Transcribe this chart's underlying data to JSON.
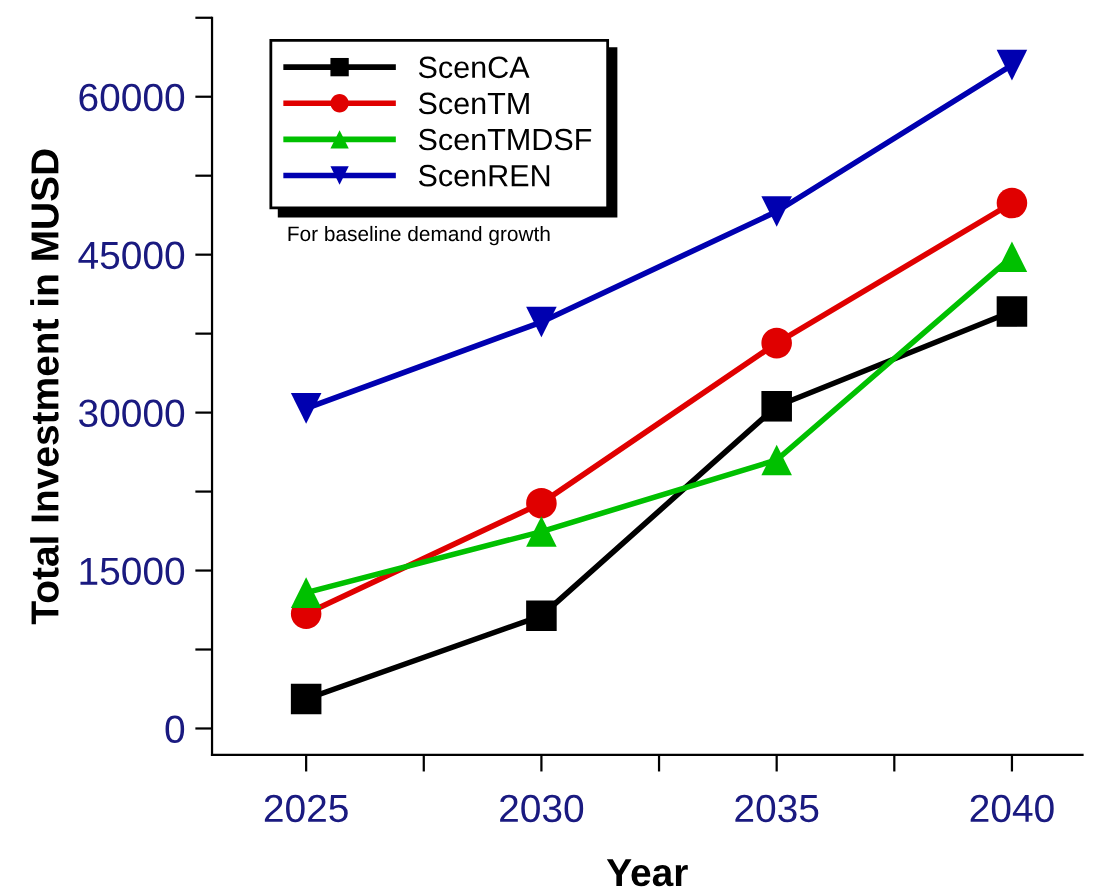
{
  "chart_data": {
    "type": "line",
    "xlabel": "Year",
    "ylabel": "Total Investment in MUSD",
    "x": [
      2025,
      2030,
      2035,
      2040
    ],
    "series": [
      {
        "name": "ScenCA",
        "color": "#000000",
        "marker": "square",
        "values": [
          2800,
          10700,
          30600,
          39600
        ]
      },
      {
        "name": "ScenTM",
        "color": "#e00000",
        "marker": "circle",
        "values": [
          10900,
          21400,
          36600,
          49900
        ]
      },
      {
        "name": "ScenTMDSF",
        "color": "#00c000",
        "marker": "triangle",
        "values": [
          12900,
          18700,
          25500,
          44800
        ]
      },
      {
        "name": "ScenREN",
        "color": "#0000b0",
        "marker": "triangle_down",
        "values": [
          30400,
          38600,
          49100,
          63000
        ]
      }
    ],
    "xlim": [
      2023,
      2041.5
    ],
    "xticks": [
      2025,
      {
        "value": 2027.5,
        "label": null
      },
      2030,
      {
        "value": 2032.5,
        "label": null
      },
      2035,
      {
        "value": 2037.5,
        "label": null
      },
      2040
    ],
    "ylim": [
      -2500,
      67500
    ],
    "yticks": [
      0,
      {
        "value": 7500,
        "label": null
      },
      15000,
      {
        "value": 22500,
        "label": null
      },
      30000,
      {
        "value": 37500,
        "label": null
      },
      45000,
      {
        "value": 52500,
        "label": null
      },
      60000,
      {
        "value": 67500,
        "label": null
      }
    ],
    "annotations": [
      "For baseline demand growth"
    ],
    "legend": "top left",
    "grid": false,
    "line_style": "solid"
  }
}
